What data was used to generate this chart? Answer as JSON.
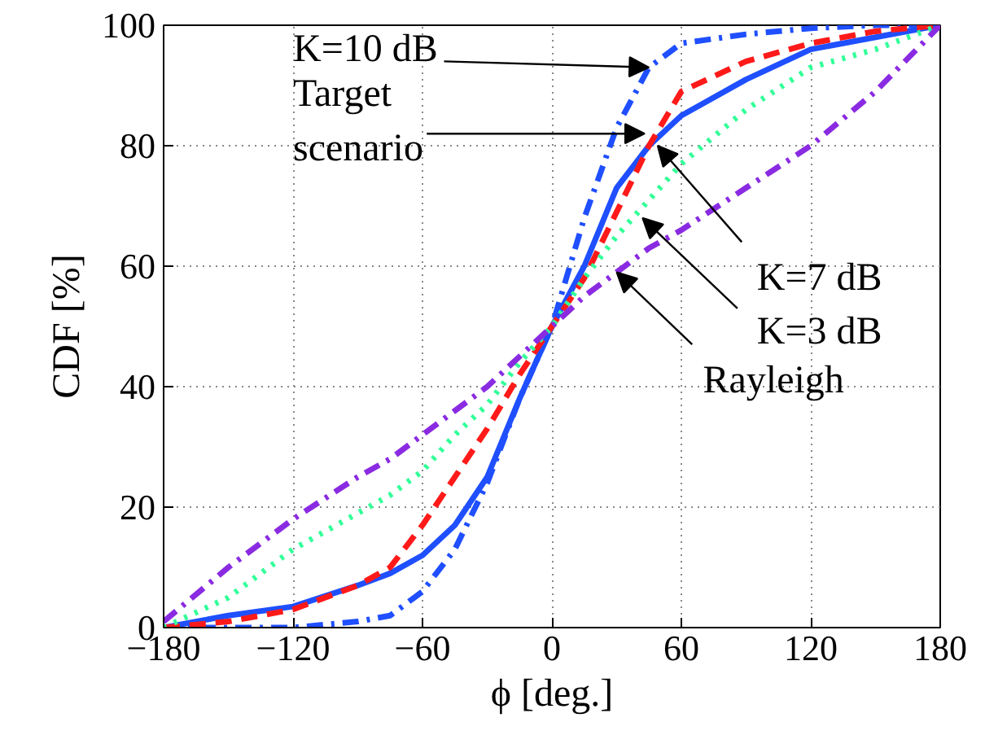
{
  "chart_data": {
    "type": "line",
    "xlabel": "ϕ [deg.]",
    "ylabel": "CDF [%]",
    "x": [
      -180,
      -150,
      -120,
      -90,
      -75,
      -60,
      -45,
      -30,
      -15,
      0,
      15,
      30,
      45,
      60,
      90,
      120,
      150,
      180
    ],
    "series": [
      {
        "color": "#1f4fff",
        "line_style": "solid",
        "values": [
          0,
          2,
          3.5,
          7,
          9,
          12,
          17,
          25,
          38,
          50,
          60,
          73,
          80,
          85,
          91,
          96,
          98,
          100
        ]
      },
      {
        "color": "#1f4fff",
        "line_style": "dashdot",
        "values": [
          0,
          0,
          0,
          1,
          2,
          6,
          13,
          24,
          38,
          50,
          68,
          83,
          93,
          97,
          98.5,
          99.5,
          100,
          100
        ]
      },
      {
        "color": "#ff1a1a",
        "line_style": "dashed",
        "values": [
          0,
          1,
          3,
          7,
          10,
          17,
          25,
          33,
          42,
          50,
          58,
          69,
          80,
          89,
          94,
          97,
          99,
          100
        ]
      },
      {
        "color": "#33ff99",
        "line_style": "dotted",
        "values": [
          0,
          5,
          13,
          19,
          22,
          26,
          32,
          37,
          44,
          50,
          58,
          65,
          71,
          77,
          86,
          93,
          96,
          100
        ]
      },
      {
        "color": "#8a2be2",
        "line_style": "dashdot",
        "values": [
          1,
          10,
          18,
          25,
          28,
          32,
          36,
          40,
          45,
          50,
          55,
          59,
          63,
          66,
          73,
          80,
          89,
          100
        ]
      }
    ],
    "annotations": [
      {
        "text": "Target scenario",
        "x": 43,
        "y": 82
      },
      {
        "text": "K=10 dB",
        "x": 45,
        "y": 93
      },
      {
        "text": "K=7 dB",
        "x": 49,
        "y": 80
      },
      {
        "text": "K=3 dB",
        "x": 42,
        "y": 68
      },
      {
        "text": "Rayleigh",
        "x": 30,
        "y": 59
      }
    ],
    "xlim": [
      -180,
      180
    ],
    "ylim": [
      0,
      100
    ],
    "xticks": [
      {
        "value": -180,
        "label": "−180"
      },
      {
        "value": -120,
        "label": "−120"
      },
      {
        "value": -60,
        "label": "−60"
      },
      0,
      60,
      120,
      180
    ],
    "yticks": [
      0,
      20,
      40,
      60,
      80,
      100
    ],
    "grid": true
  }
}
